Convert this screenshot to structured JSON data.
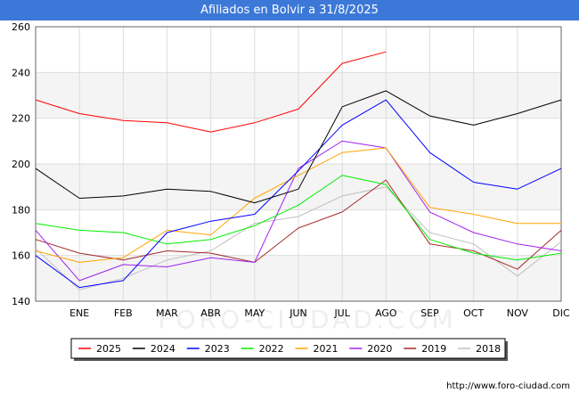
{
  "header": {
    "title": "Afiliados en Bolvir a 31/8/2025"
  },
  "footer": {
    "url": "http://www.foro-ciudad.com"
  },
  "watermark": "FORO-CIUDAD.COM",
  "chart_data": {
    "type": "line",
    "title": "Afiliados en Bolvir a 31/8/2025",
    "xlabel": "",
    "ylabel": "",
    "categories": [
      "",
      "ENE",
      "FEB",
      "MAR",
      "ABR",
      "MAY",
      "JUN",
      "JUL",
      "AGO",
      "SEP",
      "OCT",
      "NOV",
      "DIC"
    ],
    "ylim": [
      140,
      260
    ],
    "yticks": [
      140,
      160,
      180,
      200,
      220,
      240,
      260
    ],
    "grid": true,
    "legend_position": "bottom",
    "series": [
      {
        "name": "2025",
        "color": "#ff0000",
        "values": [
          228,
          222,
          219,
          218,
          214,
          218,
          224,
          244,
          249,
          null,
          null,
          null,
          null
        ]
      },
      {
        "name": "2024",
        "color": "#000000",
        "values": [
          198,
          185,
          186,
          189,
          188,
          183,
          189,
          225,
          232,
          221,
          217,
          222,
          228
        ]
      },
      {
        "name": "2023",
        "color": "#0000ff",
        "values": [
          160,
          146,
          149,
          170,
          175,
          178,
          197,
          217,
          228,
          205,
          192,
          189,
          198
        ]
      },
      {
        "name": "2022",
        "color": "#00ee00",
        "values": [
          174,
          171,
          170,
          165,
          167,
          173,
          182,
          195,
          191,
          167,
          161,
          158,
          161
        ]
      },
      {
        "name": "2021",
        "color": "#ffa500",
        "values": [
          162,
          157,
          159,
          171,
          169,
          185,
          195,
          205,
          207,
          181,
          178,
          174,
          174
        ]
      },
      {
        "name": "2020",
        "color": "#a020f0",
        "values": [
          171,
          149,
          156,
          155,
          159,
          157,
          198,
          210,
          207,
          179,
          170,
          165,
          162
        ]
      },
      {
        "name": "2019",
        "color": "#a52a2a",
        "values": [
          167,
          161,
          158,
          162,
          161,
          157,
          172,
          179,
          193,
          165,
          162,
          154,
          171
        ]
      },
      {
        "name": "2018",
        "color": "#c0c0c0",
        "values": [
          163,
          145,
          150,
          158,
          162,
          174,
          177,
          186,
          190,
          170,
          165,
          151,
          166
        ]
      }
    ]
  }
}
